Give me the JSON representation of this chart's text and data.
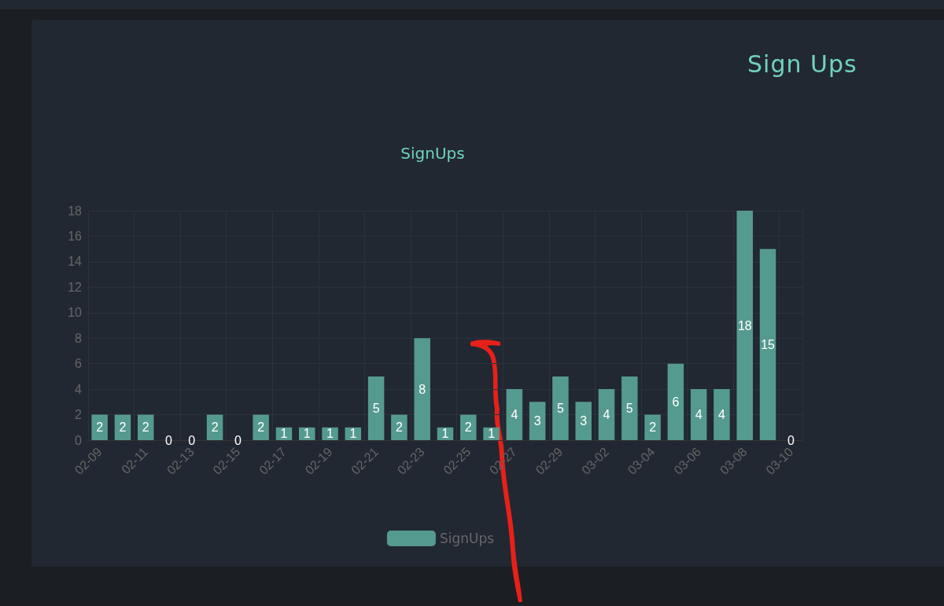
{
  "chart_data": {
    "type": "bar",
    "title": "Sign Ups",
    "subtitle": "SignUps",
    "categories": [
      "02-09",
      null,
      "02-11",
      null,
      "02-13",
      null,
      "02-15",
      null,
      "02-17",
      null,
      "02-19",
      null,
      "02-21",
      null,
      "02-23",
      null,
      "02-25",
      null,
      "02-27",
      null,
      "02-29",
      null,
      "03-02",
      null,
      "03-04",
      null,
      "03-06",
      null,
      "03-08",
      null,
      "03-10"
    ],
    "series": [
      {
        "name": "SignUps",
        "color": "#559a8e",
        "values": [
          2,
          2,
          2,
          0,
          0,
          2,
          0,
          2,
          1,
          1,
          1,
          1,
          5,
          2,
          8,
          1,
          2,
          1,
          4,
          3,
          5,
          3,
          4,
          5,
          2,
          6,
          4,
          4,
          18,
          15,
          0
        ]
      }
    ],
    "ylim": [
      0,
      18
    ],
    "yticks": [
      0,
      2,
      4,
      6,
      8,
      10,
      12,
      14,
      16,
      18
    ],
    "grid": true,
    "legend": "bottom",
    "data_labels": true
  }
}
